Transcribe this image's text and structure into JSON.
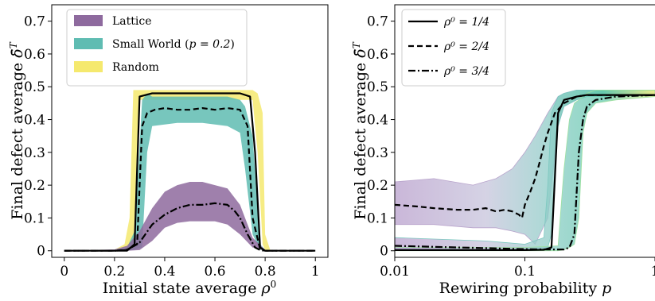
{
  "chart_data": [
    {
      "type": "area",
      "xlabel": "Initial state average ρ⁰",
      "ylabel": "Final defect average δ̄ᵀ",
      "xlim": [
        -0.05,
        1.05
      ],
      "ylim": [
        -0.02,
        0.75
      ],
      "xticks": [
        "0",
        "0.2",
        "0.4",
        "0.6",
        "0.8",
        "1"
      ],
      "yticks": [
        "0",
        "0.1",
        "0.2",
        "0.3",
        "0.4",
        "0.5",
        "0.6",
        "0.7"
      ],
      "legend_position": "top-left",
      "legend": [
        {
          "name": "Lattice",
          "color": "#8e6a9e"
        },
        {
          "name": "Small World (",
          "param": "p = 0.2",
          "suffix": ")",
          "color": "#5fbcb2"
        },
        {
          "name": "Random",
          "color": "#f5e96e"
        }
      ],
      "bands": [
        {
          "name": "Random",
          "color": "#f5e96e",
          "x": [
            0,
            0.2,
            0.24,
            0.26,
            0.275,
            0.3,
            0.5,
            0.75,
            0.77,
            0.79,
            0.8,
            0.82,
            1
          ],
          "lower": [
            0,
            0,
            0,
            0.002,
            0.005,
            0.46,
            0.46,
            0.46,
            0.3,
            0.02,
            0.002,
            0,
            0
          ],
          "upper": [
            0,
            0.003,
            0.02,
            0.1,
            0.49,
            0.49,
            0.49,
            0.49,
            0.48,
            0.42,
            0.05,
            0.003,
            0
          ]
        },
        {
          "name": "Small World (p = 0.2)",
          "color": "#5fbcb2",
          "x": [
            0,
            0.2,
            0.25,
            0.28,
            0.31,
            0.33,
            0.35,
            0.45,
            0.55,
            0.65,
            0.7,
            0.72,
            0.75,
            0.78,
            0.8,
            1
          ],
          "lower": [
            0,
            0,
            0,
            0.003,
            0.01,
            0.3,
            0.38,
            0.39,
            0.39,
            0.38,
            0.36,
            0.25,
            0.05,
            0.003,
            0,
            0
          ],
          "upper": [
            0,
            0.003,
            0.01,
            0.06,
            0.46,
            0.48,
            0.47,
            0.47,
            0.47,
            0.47,
            0.46,
            0.44,
            0.35,
            0.02,
            0.003,
            0
          ]
        },
        {
          "name": "Lattice",
          "color": "#8e6a9e",
          "x": [
            0,
            0.2,
            0.25,
            0.3,
            0.35,
            0.4,
            0.45,
            0.5,
            0.55,
            0.6,
            0.65,
            0.7,
            0.75,
            0.8,
            1
          ],
          "lower": [
            0,
            0,
            0,
            0.002,
            0.03,
            0.07,
            0.085,
            0.09,
            0.09,
            0.09,
            0.08,
            0.05,
            0.01,
            0,
            0
          ],
          "upper": [
            0,
            0.004,
            0.015,
            0.06,
            0.13,
            0.18,
            0.2,
            0.21,
            0.21,
            0.2,
            0.19,
            0.14,
            0.04,
            0.003,
            0
          ]
        }
      ],
      "series": [
        {
          "style": "solid",
          "x": [
            0,
            0.2,
            0.25,
            0.28,
            0.3,
            0.35,
            0.4,
            0.5,
            0.6,
            0.7,
            0.74,
            0.76,
            0.78,
            0.8,
            1
          ],
          "values": [
            0,
            0,
            0,
            0.02,
            0.47,
            0.48,
            0.48,
            0.48,
            0.48,
            0.48,
            0.47,
            0.3,
            0.01,
            0,
            0
          ]
        },
        {
          "style": "dashed",
          "x": [
            0,
            0.2,
            0.25,
            0.29,
            0.31,
            0.33,
            0.36,
            0.4,
            0.45,
            0.5,
            0.55,
            0.6,
            0.65,
            0.7,
            0.73,
            0.75,
            0.78,
            0.8,
            1
          ],
          "values": [
            0,
            0,
            0.003,
            0.02,
            0.38,
            0.42,
            0.43,
            0.435,
            0.43,
            0.43,
            0.435,
            0.43,
            0.435,
            0.43,
            0.38,
            0.1,
            0.005,
            0,
            0
          ]
        },
        {
          "style": "dashdot",
          "x": [
            0,
            0.2,
            0.25,
            0.3,
            0.35,
            0.4,
            0.45,
            0.5,
            0.55,
            0.6,
            0.65,
            0.68,
            0.7,
            0.73,
            0.76,
            0.78,
            0.8,
            1
          ],
          "values": [
            0,
            0,
            0.002,
            0.025,
            0.08,
            0.11,
            0.13,
            0.14,
            0.14,
            0.145,
            0.14,
            0.12,
            0.1,
            0.05,
            0.01,
            0.002,
            0,
            0
          ]
        }
      ]
    },
    {
      "type": "area",
      "xlabel": "Rewiring probability p",
      "ylabel": "Final defect average δ̄ᵀ",
      "xscale": "log",
      "xlim": [
        0.01,
        1
      ],
      "ylim": [
        -0.02,
        0.75
      ],
      "xticks": [
        "0.01",
        "0.1",
        "1"
      ],
      "yticks": [
        "0",
        "0.1",
        "0.2",
        "0.3",
        "0.4",
        "0.5",
        "0.6",
        "0.7"
      ],
      "legend_position": "top-left",
      "legend": [
        {
          "label": "ρ⁰ = 1/4",
          "style": "solid"
        },
        {
          "label": "ρ⁰ = 2/4",
          "style": "dashed"
        },
        {
          "label": "ρ⁰ = 3/4",
          "style": "dashdot"
        }
      ],
      "bands": [
        {
          "x": [
            0.01,
            0.02,
            0.04,
            0.06,
            0.08,
            0.1,
            0.12,
            0.15,
            0.18,
            0.2,
            0.25,
            0.3,
            0.5,
            1
          ],
          "lower": [
            0.08,
            0.08,
            0.07,
            0.07,
            0.06,
            0.05,
            0.02,
            0.1,
            0.38,
            0.44,
            0.46,
            0.47,
            0.47,
            0.47
          ],
          "upper": [
            0.21,
            0.22,
            0.2,
            0.22,
            0.25,
            0.3,
            0.35,
            0.42,
            0.47,
            0.48,
            0.49,
            0.49,
            0.49,
            0.49
          ]
        },
        {
          "x": [
            0.01,
            0.05,
            0.1,
            0.14,
            0.15,
            0.16,
            0.18,
            0.2,
            0.25,
            0.3,
            0.5,
            1
          ],
          "lower": [
            0.005,
            0.005,
            0.005,
            0.005,
            0.01,
            0.05,
            0.38,
            0.44,
            0.46,
            0.47,
            0.47,
            0.47
          ],
          "upper": [
            0.04,
            0.03,
            0.02,
            0.04,
            0.2,
            0.42,
            0.47,
            0.48,
            0.49,
            0.49,
            0.49,
            0.49
          ]
        },
        {
          "x": [
            0.01,
            0.1,
            0.18,
            0.2,
            0.22,
            0.24,
            0.26,
            0.28,
            0.3,
            0.35,
            0.5,
            1
          ],
          "lower": [
            0,
            0,
            0,
            0.003,
            0.01,
            0.02,
            0.1,
            0.36,
            0.42,
            0.45,
            0.46,
            0.47
          ],
          "upper": [
            0.01,
            0.01,
            0.015,
            0.25,
            0.4,
            0.45,
            0.46,
            0.47,
            0.48,
            0.49,
            0.49,
            0.49
          ]
        }
      ],
      "band_colors": [
        "#b9a4cc",
        "#7cc8c0",
        "#9ce0a0"
      ],
      "series": [
        {
          "style": "solid",
          "x": [
            0.01,
            0.03,
            0.06,
            0.1,
            0.14,
            0.16,
            0.18,
            0.2,
            0.25,
            0.3,
            0.5,
            1
          ],
          "values": [
            0.002,
            0.002,
            0.002,
            0.002,
            0.003,
            0.01,
            0.42,
            0.46,
            0.47,
            0.475,
            0.475,
            0.475
          ]
        },
        {
          "style": "dashed",
          "x": [
            0.01,
            0.015,
            0.02,
            0.03,
            0.04,
            0.05,
            0.06,
            0.07,
            0.08,
            0.09,
            0.095,
            0.1,
            0.11,
            0.12,
            0.13,
            0.14,
            0.15,
            0.17,
            0.2,
            0.25,
            0.3,
            0.5,
            1
          ],
          "values": [
            0.14,
            0.135,
            0.13,
            0.125,
            0.125,
            0.13,
            0.12,
            0.125,
            0.12,
            0.11,
            0.1,
            0.14,
            0.18,
            0.22,
            0.27,
            0.32,
            0.36,
            0.42,
            0.45,
            0.47,
            0.475,
            0.475,
            0.475
          ]
        },
        {
          "style": "dashdot",
          "x": [
            0.01,
            0.02,
            0.05,
            0.1,
            0.15,
            0.2,
            0.22,
            0.24,
            0.26,
            0.28,
            0.3,
            0.35,
            0.5,
            1
          ],
          "values": [
            0.015,
            0.012,
            0.008,
            0.005,
            0.004,
            0.004,
            0.01,
            0.05,
            0.3,
            0.4,
            0.44,
            0.46,
            0.47,
            0.475
          ]
        }
      ]
    }
  ]
}
